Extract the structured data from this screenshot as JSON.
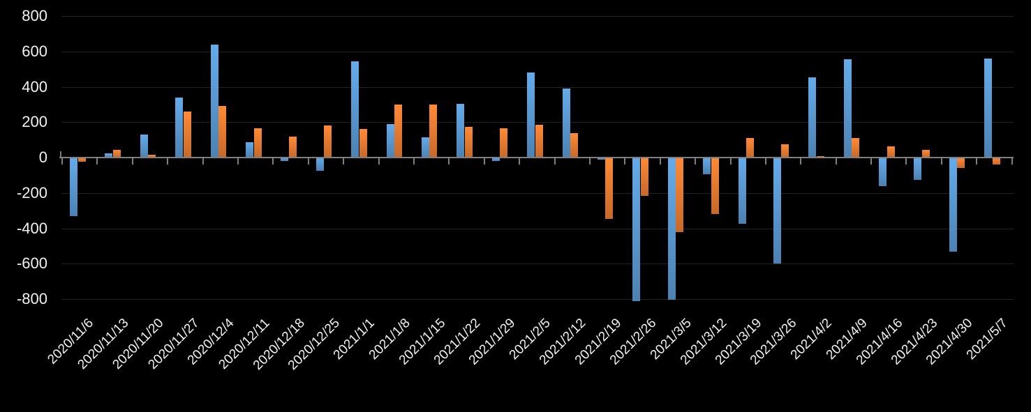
{
  "chart_data": {
    "type": "bar",
    "title": "",
    "xlabel": "",
    "ylabel": "",
    "legend": "none",
    "grid": true,
    "background_color": "#000000",
    "axis_color": "#7F7F7F",
    "gridline_color": "#242424",
    "label_color": "#F2F2F2",
    "ylim": [
      -850,
      800
    ],
    "yticks": [
      800,
      600,
      400,
      200,
      0,
      -200,
      -400,
      -600,
      -800
    ],
    "categories": [
      "2020/11/6",
      "2020/11/13",
      "2020/11/20",
      "2020/11/27",
      "2020/12/4",
      "2020/12/11",
      "2020/12/18",
      "2020/12/25",
      "2021/1/1",
      "2021/1/8",
      "2021/1/15",
      "2021/1/22",
      "2021/1/29",
      "2021/2/5",
      "2021/2/12",
      "2021/2/19",
      "2021/2/26",
      "2021/3/5",
      "2021/3/12",
      "2021/3/19",
      "2021/3/26",
      "2021/4/2",
      "2021/4/9",
      "2021/4/16",
      "2021/4/23",
      "2021/4/30",
      "2021/5/7"
    ],
    "series": [
      {
        "name": "blue-series",
        "color": "#5B9BD5",
        "values": [
          -330,
          25,
          130,
          340,
          640,
          85,
          -20,
          -75,
          545,
          190,
          115,
          305,
          -20,
          480,
          390,
          -10,
          -810,
          -805,
          -95,
          -375,
          -600,
          455,
          555,
          -160,
          -125,
          -530,
          560
        ]
      },
      {
        "name": "orange-series",
        "color": "#ED7D31",
        "values": [
          -25,
          45,
          15,
          260,
          290,
          165,
          120,
          180,
          160,
          300,
          300,
          175,
          165,
          185,
          140,
          -345,
          -215,
          -420,
          -320,
          110,
          75,
          10,
          110,
          65,
          45,
          -60,
          -40
        ]
      }
    ]
  }
}
